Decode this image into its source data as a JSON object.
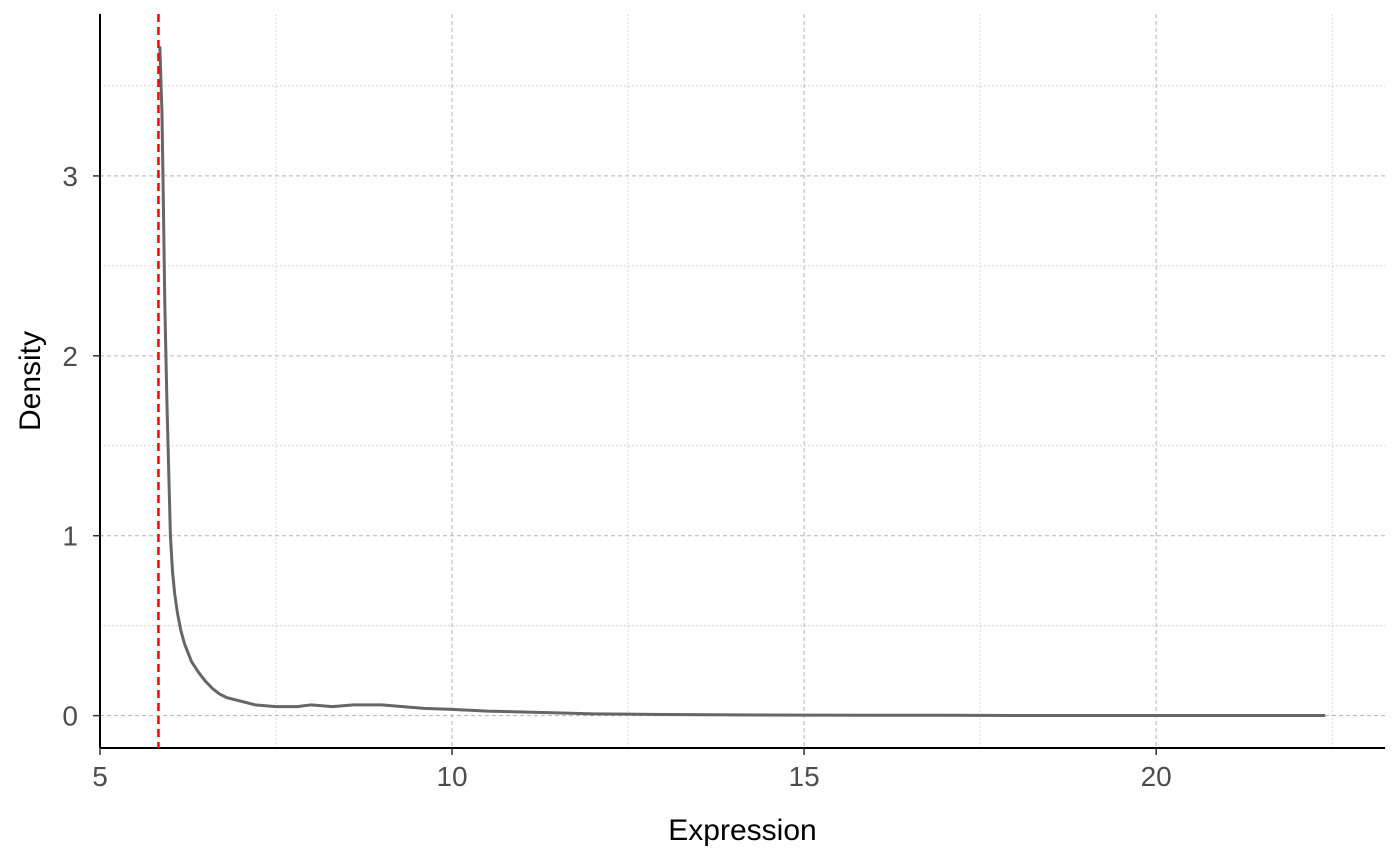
{
  "chart_data": {
    "type": "line",
    "title": "",
    "xlabel": "Expression",
    "ylabel": "Density",
    "xlim": [
      5,
      23.25
    ],
    "ylim": [
      -0.18,
      3.9
    ],
    "x_ticks": [
      5,
      10,
      15,
      20
    ],
    "x_tick_labels": [
      "5",
      "10",
      "15",
      "20"
    ],
    "x_minor_ticks": [
      7.5,
      12.5,
      17.5,
      22.5
    ],
    "y_ticks": [
      0,
      1,
      2,
      3
    ],
    "y_tick_labels": [
      "0",
      "1",
      "2",
      "3"
    ],
    "y_minor_ticks": [
      0.5,
      1.5,
      2.5,
      3.5
    ],
    "grid": true,
    "legend": "none",
    "series": [
      {
        "color": "#666666",
        "x": [
          5.85,
          5.88,
          5.9,
          5.92,
          5.95,
          5.98,
          6.0,
          6.03,
          6.06,
          6.1,
          6.15,
          6.2,
          6.3,
          6.4,
          6.5,
          6.6,
          6.7,
          6.8,
          7.0,
          7.2,
          7.5,
          7.8,
          8.0,
          8.3,
          8.6,
          9.0,
          9.3,
          9.6,
          10.0,
          10.5,
          11.0,
          11.5,
          12.0,
          12.5,
          13.0,
          14.0,
          15.0,
          16.0,
          17.0,
          18.0,
          19.0,
          20.0,
          21.0,
          22.0,
          22.4
        ],
        "y": [
          3.72,
          3.35,
          2.85,
          2.3,
          1.75,
          1.3,
          1.0,
          0.8,
          0.68,
          0.57,
          0.47,
          0.4,
          0.3,
          0.24,
          0.19,
          0.15,
          0.12,
          0.1,
          0.08,
          0.06,
          0.05,
          0.05,
          0.06,
          0.05,
          0.06,
          0.06,
          0.05,
          0.04,
          0.035,
          0.025,
          0.02,
          0.015,
          0.01,
          0.008,
          0.006,
          0.004,
          0.003,
          0.002,
          0.002,
          0.001,
          0.001,
          0.001,
          0.001,
          0.001,
          0.001
        ]
      }
    ],
    "reference_line": {
      "type": "vertical",
      "x": 5.83,
      "color": "#ff0000",
      "style": "dashed"
    }
  }
}
